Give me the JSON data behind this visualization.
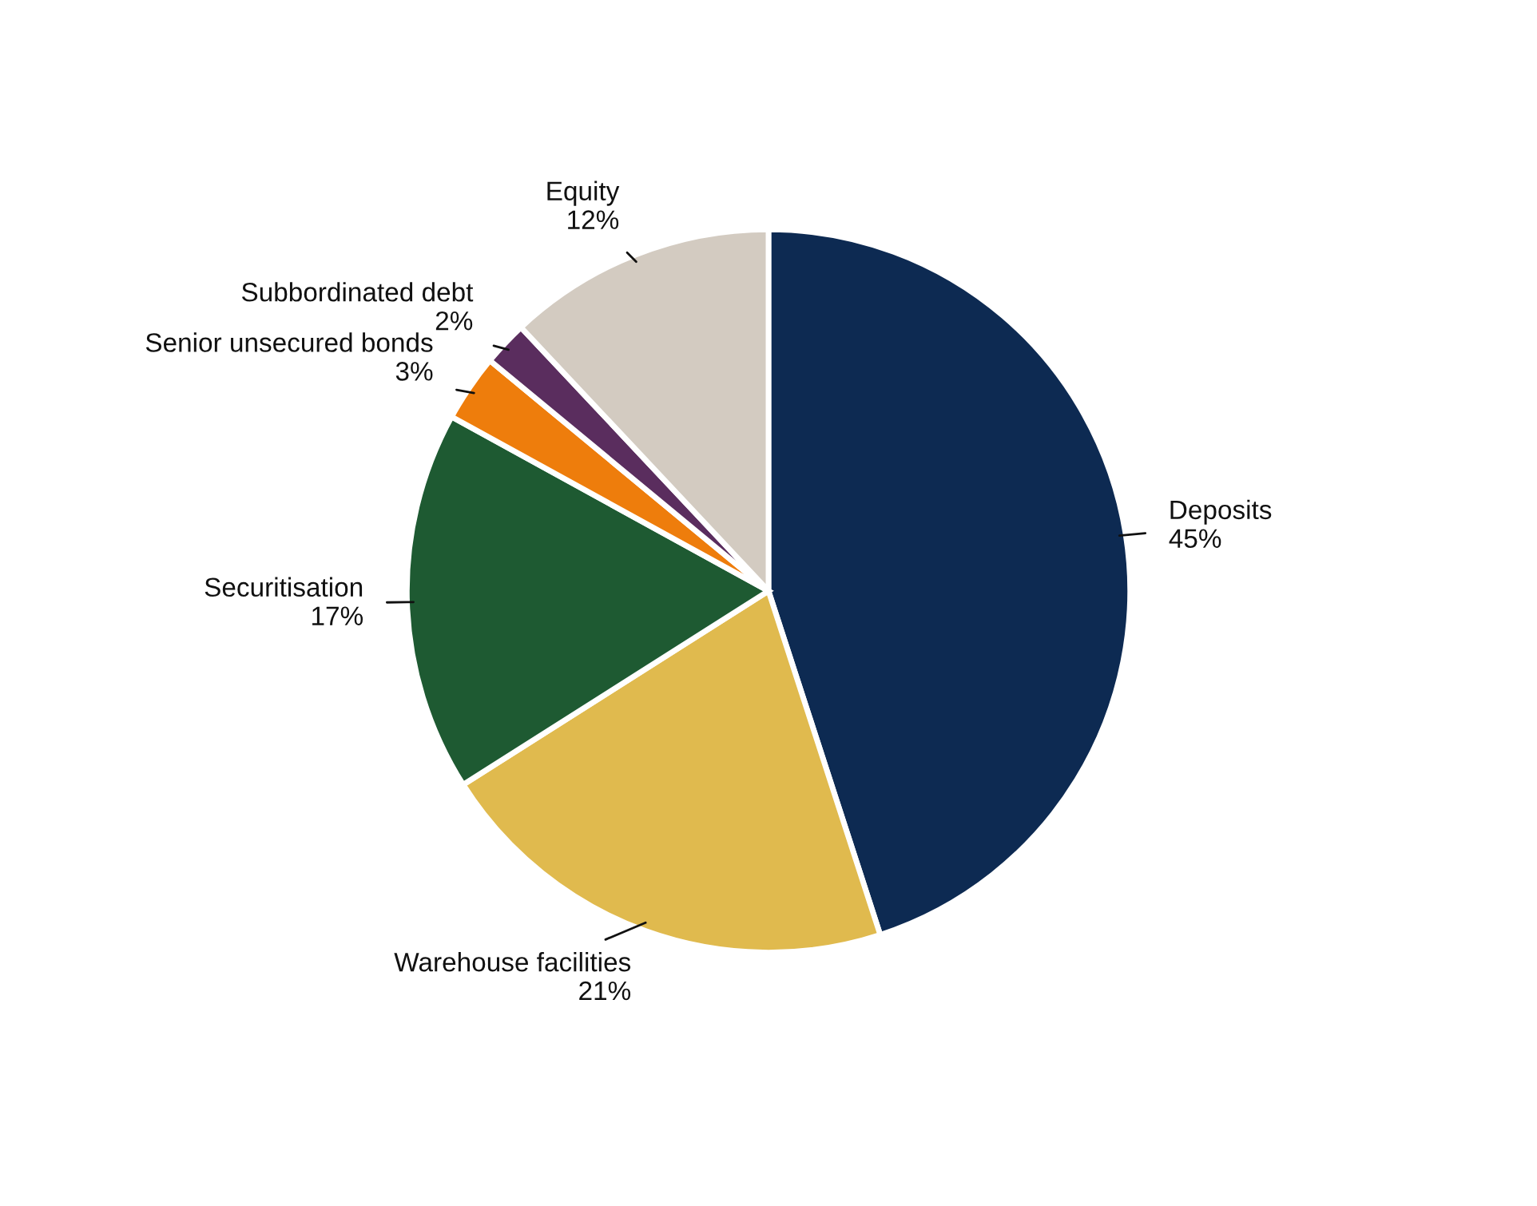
{
  "chart_data": {
    "type": "pie",
    "categories": [
      "Deposits",
      "Warehouse facilities",
      "Securitisation",
      "Senior unsecured bonds",
      "Subbordinated debt",
      "Equity"
    ],
    "values": [
      45,
      21,
      17,
      3,
      2,
      12
    ],
    "value_labels": [
      "45%",
      "21%",
      "17%",
      "3%",
      "2%",
      "12%"
    ],
    "colors": [
      "#0d2a52",
      "#e0ba4e",
      "#1e5a32",
      "#ee7d0c",
      "#5a2d5e",
      "#d3cbc1"
    ],
    "legend": false
  }
}
